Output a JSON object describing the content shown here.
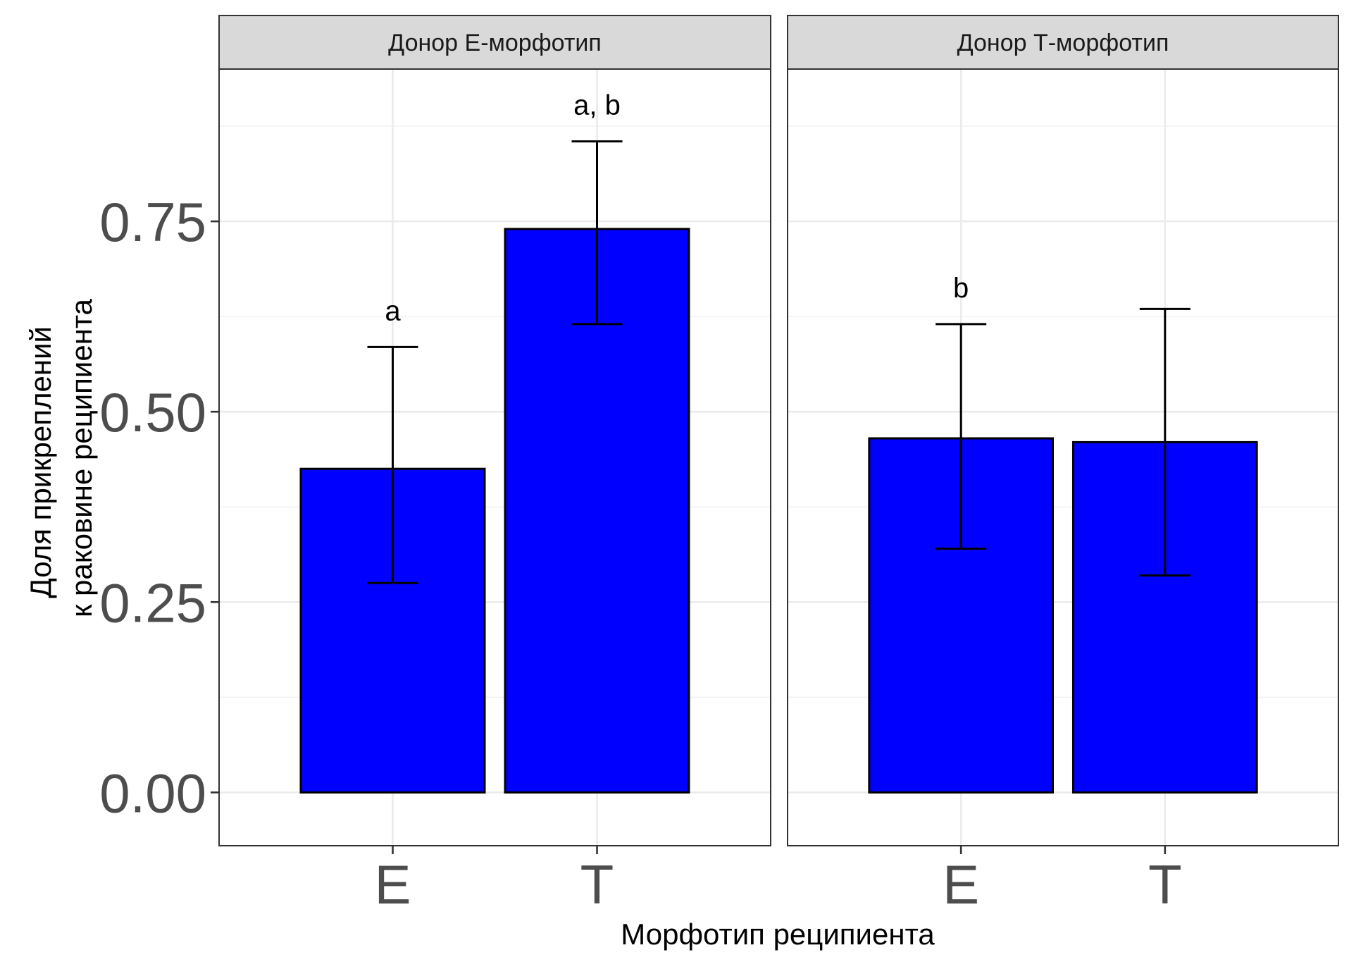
{
  "chart_data": {
    "type": "bar",
    "xlabel": "Морфотип реципиента",
    "ylabel_lines": [
      "Доля прикреплений",
      "к раковине реципиента"
    ],
    "ylim": [
      -0.07,
      0.95
    ],
    "y_ticks": [
      0.0,
      0.25,
      0.5,
      0.75
    ],
    "y_tick_labels": [
      "0.00",
      "0.25",
      "0.50",
      "0.75"
    ],
    "y_minor_ticks": [
      0.125,
      0.375,
      0.625,
      0.875
    ],
    "grid": true,
    "bar_color": "#0000ff",
    "categories": [
      "E",
      "T"
    ],
    "panels": [
      {
        "strip": "Донор Е-морфотип",
        "bars": [
          {
            "category": "E",
            "value": 0.425,
            "err_low": 0.275,
            "err_high": 0.585,
            "label": "a"
          },
          {
            "category": "T",
            "value": 0.74,
            "err_low": 0.615,
            "err_high": 0.855,
            "label": "a, b"
          }
        ]
      },
      {
        "strip": "Донор Т-морфотип",
        "bars": [
          {
            "category": "E",
            "value": 0.465,
            "err_low": 0.32,
            "err_high": 0.615,
            "label": "b"
          },
          {
            "category": "T",
            "value": 0.46,
            "err_low": 0.285,
            "err_high": 0.635,
            "label": ""
          }
        ]
      }
    ]
  }
}
